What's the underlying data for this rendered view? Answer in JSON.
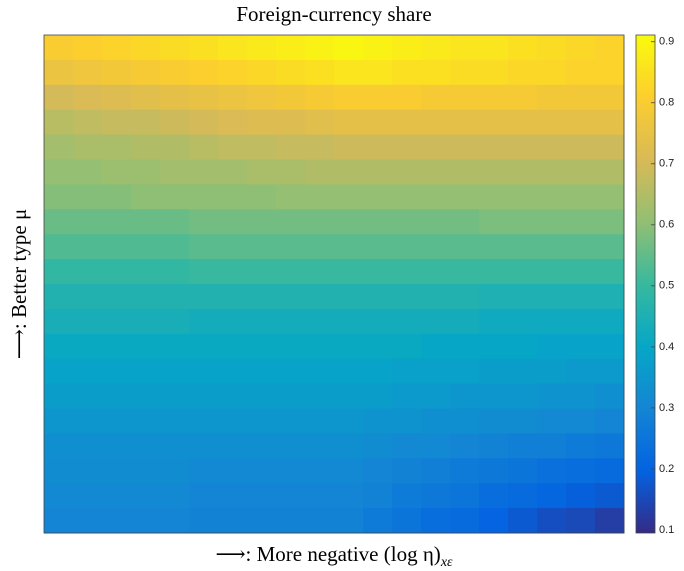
{
  "chart_data": {
    "type": "heatmap",
    "title": "Foreign-currency share",
    "xlabel": {
      "text": "⟶: More negative (log η)",
      "subscript": "xε"
    },
    "ylabel": "⟶: Better type μ",
    "colormap": [
      "#352a87",
      "#0363e1",
      "#1485d4",
      "#06a7c6",
      "#38b99e",
      "#92bf73",
      "#d9ba56",
      "#fcce2e",
      "#f9fb0e"
    ],
    "clim": [
      0.095,
      0.911
    ],
    "cticks": [
      0.1,
      0.2,
      0.3,
      0.4,
      0.5,
      0.6,
      0.7,
      0.8,
      0.9
    ],
    "z": [
      [
        0.8,
        0.81,
        0.82,
        0.83,
        0.84,
        0.85,
        0.86,
        0.87,
        0.88,
        0.89,
        0.9,
        0.89,
        0.88,
        0.87,
        0.86,
        0.86,
        0.85,
        0.84,
        0.83,
        0.82
      ],
      [
        0.76,
        0.77,
        0.78,
        0.79,
        0.8,
        0.81,
        0.82,
        0.83,
        0.84,
        0.85,
        0.86,
        0.86,
        0.85,
        0.85,
        0.84,
        0.84,
        0.83,
        0.83,
        0.82,
        0.82
      ],
      [
        0.7,
        0.71,
        0.72,
        0.73,
        0.74,
        0.75,
        0.76,
        0.77,
        0.78,
        0.79,
        0.8,
        0.8,
        0.8,
        0.79,
        0.79,
        0.79,
        0.79,
        0.78,
        0.78,
        0.78
      ],
      [
        0.66,
        0.67,
        0.68,
        0.68,
        0.69,
        0.7,
        0.71,
        0.72,
        0.72,
        0.73,
        0.74,
        0.74,
        0.74,
        0.74,
        0.74,
        0.74,
        0.74,
        0.74,
        0.74,
        0.74
      ],
      [
        0.63,
        0.64,
        0.64,
        0.65,
        0.65,
        0.66,
        0.67,
        0.67,
        0.68,
        0.68,
        0.69,
        0.69,
        0.69,
        0.69,
        0.69,
        0.69,
        0.69,
        0.69,
        0.69,
        0.69
      ],
      [
        0.61,
        0.61,
        0.62,
        0.62,
        0.63,
        0.63,
        0.63,
        0.64,
        0.64,
        0.65,
        0.65,
        0.65,
        0.65,
        0.65,
        0.65,
        0.65,
        0.65,
        0.65,
        0.65,
        0.65
      ],
      [
        0.59,
        0.59,
        0.59,
        0.6,
        0.6,
        0.6,
        0.6,
        0.6,
        0.61,
        0.61,
        0.61,
        0.61,
        0.61,
        0.61,
        0.61,
        0.61,
        0.61,
        0.61,
        0.61,
        0.61
      ],
      [
        0.56,
        0.56,
        0.56,
        0.56,
        0.56,
        0.57,
        0.57,
        0.57,
        0.57,
        0.57,
        0.57,
        0.57,
        0.57,
        0.57,
        0.57,
        0.58,
        0.58,
        0.58,
        0.58,
        0.58
      ],
      [
        0.53,
        0.53,
        0.53,
        0.53,
        0.53,
        0.54,
        0.54,
        0.54,
        0.54,
        0.54,
        0.54,
        0.54,
        0.54,
        0.54,
        0.54,
        0.54,
        0.54,
        0.54,
        0.54,
        0.54
      ],
      [
        0.49,
        0.49,
        0.49,
        0.49,
        0.49,
        0.5,
        0.5,
        0.5,
        0.5,
        0.5,
        0.5,
        0.5,
        0.5,
        0.5,
        0.5,
        0.5,
        0.5,
        0.5,
        0.5,
        0.5
      ],
      [
        0.46,
        0.46,
        0.46,
        0.46,
        0.46,
        0.46,
        0.46,
        0.46,
        0.46,
        0.46,
        0.46,
        0.46,
        0.46,
        0.46,
        0.46,
        0.45,
        0.45,
        0.45,
        0.45,
        0.45
      ],
      [
        0.44,
        0.44,
        0.44,
        0.44,
        0.44,
        0.43,
        0.43,
        0.43,
        0.43,
        0.43,
        0.43,
        0.43,
        0.43,
        0.43,
        0.43,
        0.42,
        0.42,
        0.42,
        0.42,
        0.42
      ],
      [
        0.41,
        0.41,
        0.41,
        0.41,
        0.41,
        0.41,
        0.41,
        0.41,
        0.41,
        0.41,
        0.41,
        0.41,
        0.41,
        0.4,
        0.4,
        0.4,
        0.4,
        0.39,
        0.39,
        0.39
      ],
      [
        0.39,
        0.39,
        0.39,
        0.39,
        0.39,
        0.39,
        0.39,
        0.39,
        0.39,
        0.39,
        0.39,
        0.39,
        0.38,
        0.38,
        0.38,
        0.37,
        0.37,
        0.37,
        0.36,
        0.36
      ],
      [
        0.37,
        0.37,
        0.37,
        0.37,
        0.37,
        0.37,
        0.37,
        0.37,
        0.37,
        0.37,
        0.37,
        0.37,
        0.36,
        0.36,
        0.35,
        0.35,
        0.35,
        0.34,
        0.34,
        0.33
      ],
      [
        0.35,
        0.35,
        0.35,
        0.35,
        0.35,
        0.35,
        0.35,
        0.35,
        0.35,
        0.35,
        0.35,
        0.34,
        0.34,
        0.33,
        0.33,
        0.32,
        0.32,
        0.31,
        0.31,
        0.3
      ],
      [
        0.33,
        0.33,
        0.33,
        0.33,
        0.33,
        0.33,
        0.33,
        0.33,
        0.33,
        0.33,
        0.33,
        0.32,
        0.31,
        0.31,
        0.3,
        0.29,
        0.28,
        0.28,
        0.27,
        0.26
      ],
      [
        0.32,
        0.32,
        0.32,
        0.32,
        0.32,
        0.31,
        0.31,
        0.31,
        0.31,
        0.31,
        0.31,
        0.3,
        0.29,
        0.28,
        0.27,
        0.26,
        0.25,
        0.24,
        0.23,
        0.22
      ],
      [
        0.31,
        0.31,
        0.31,
        0.31,
        0.31,
        0.3,
        0.3,
        0.3,
        0.3,
        0.3,
        0.3,
        0.29,
        0.27,
        0.26,
        0.25,
        0.23,
        0.22,
        0.21,
        0.19,
        0.18
      ],
      [
        0.3,
        0.3,
        0.3,
        0.3,
        0.3,
        0.29,
        0.29,
        0.29,
        0.29,
        0.29,
        0.29,
        0.27,
        0.25,
        0.23,
        0.22,
        0.2,
        0.18,
        0.16,
        0.15,
        0.13
      ]
    ]
  }
}
